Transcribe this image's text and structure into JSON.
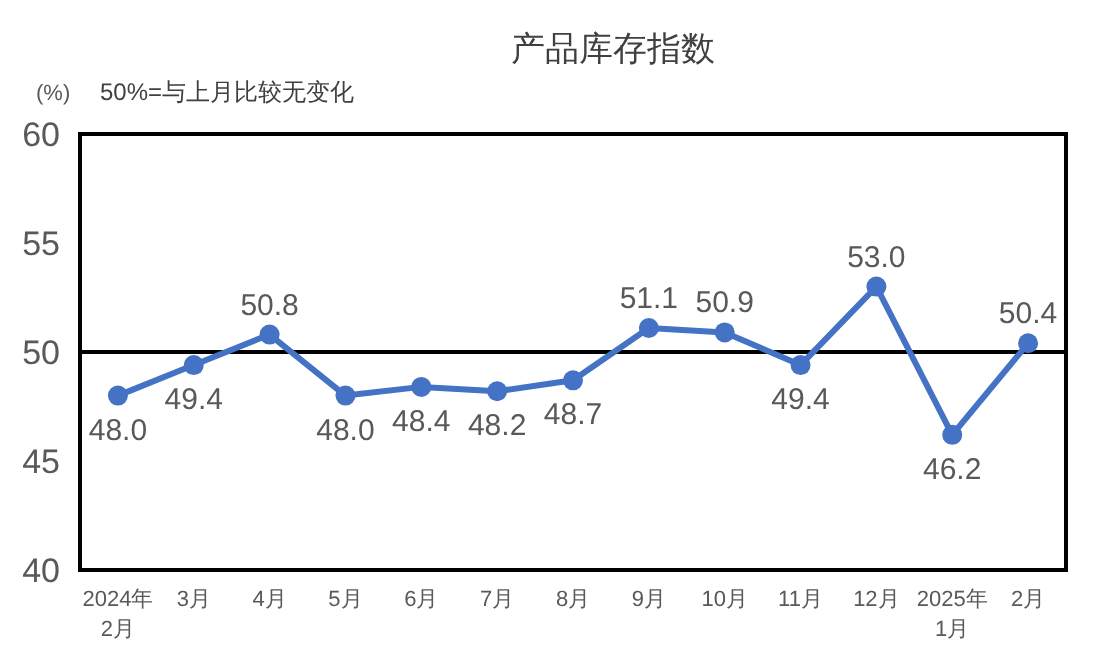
{
  "chart_data": {
    "type": "line",
    "title": "产品库存指数",
    "ylabel": "(%)",
    "annotations": [
      "50%=与上月比较无变化"
    ],
    "categories": [
      "2024年\n2月",
      "3月",
      "4月",
      "5月",
      "6月",
      "7月",
      "8月",
      "9月",
      "10月",
      "11月",
      "12月",
      "2025年\n1月",
      "2月"
    ],
    "series": [
      {
        "color": "#4472c4",
        "values": [
          48.0,
          49.4,
          50.8,
          48.0,
          48.4,
          48.2,
          48.7,
          51.1,
          50.9,
          49.4,
          53.0,
          46.2,
          50.4
        ],
        "value_labels": [
          "48.0",
          "49.4",
          "50.8",
          "48.0",
          "48.4",
          "48.2",
          "48.7",
          "51.1",
          "50.9",
          "49.4",
          "53.0",
          "46.2",
          "50.4"
        ]
      }
    ],
    "ylim": [
      40,
      60
    ],
    "yticks": [
      40,
      45,
      50,
      55,
      60
    ],
    "ref_lines": [
      {
        "axis": "y",
        "value": 50,
        "color": "#000000"
      }
    ],
    "marker": "circle",
    "line_style": "solid",
    "grid": false
  }
}
